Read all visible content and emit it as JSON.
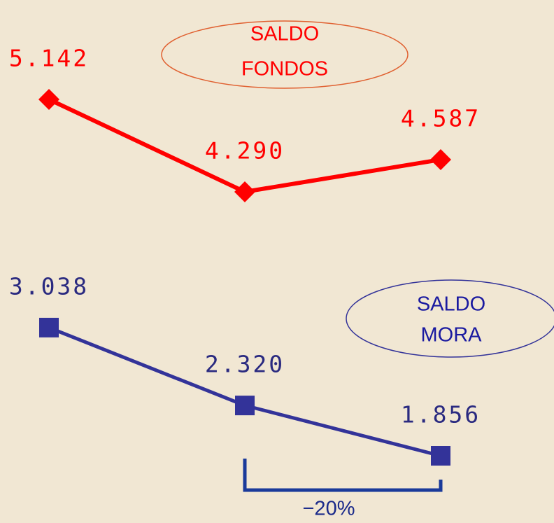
{
  "chart_data": {
    "type": "line",
    "categories": [
      null,
      null,
      null
    ],
    "series": [
      {
        "name": "SALDO FONDOS",
        "color": "#ff0000",
        "marker": "diamond",
        "values": [
          5142,
          4290,
          4587
        ],
        "value_labels": [
          "5.142",
          "4.290",
          "4.587"
        ]
      },
      {
        "name": "SALDO MORA",
        "color": "#333399",
        "marker": "square",
        "values": [
          3038,
          2320,
          1856
        ],
        "value_labels": [
          "3.038",
          "2.320",
          "1.856"
        ]
      }
    ],
    "annotations": [
      [
        "SALDO",
        "FONDOS"
      ],
      [
        "SALDO",
        "MORA"
      ],
      "−20%"
    ]
  }
}
